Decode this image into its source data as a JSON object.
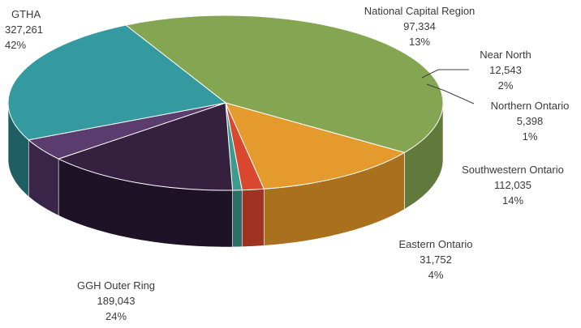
{
  "chart_data": {
    "type": "pie",
    "style": "3d",
    "title": "",
    "slices": [
      {
        "name": "GTHA",
        "value": 327261,
        "percent": "42%",
        "value_label": "327,261",
        "color": "#84a652",
        "side_color": "#5f7a3a"
      },
      {
        "name": "National Capital Region",
        "value": 97334,
        "percent": "13%",
        "value_label": "97,334",
        "color": "#e49a2c",
        "side_color": "#a9701e"
      },
      {
        "name": "Near North",
        "value": 12543,
        "percent": "2%",
        "value_label": "12,543",
        "color": "#d9472f",
        "side_color": "#9e3322"
      },
      {
        "name": "Northern Ontario",
        "value": 5398,
        "percent": "1%",
        "value_label": "5,398",
        "color": "#3c9a8e",
        "side_color": "#2a6e66"
      },
      {
        "name": "Southwestern Ontario",
        "value": 112035,
        "percent": "14%",
        "value_label": "112,035",
        "color": "#35213f",
        "side_color": "#1e1226"
      },
      {
        "name": "Eastern Ontario",
        "value": 31752,
        "percent": "4%",
        "value_label": "31,752",
        "color": "#5a3c6e",
        "side_color": "#3a2548"
      },
      {
        "name": "GGH Outer Ring",
        "value": 189043,
        "percent": "24%",
        "value_label": "189,043",
        "color": "#349a9f",
        "side_color": "#1f5f63"
      }
    ]
  }
}
